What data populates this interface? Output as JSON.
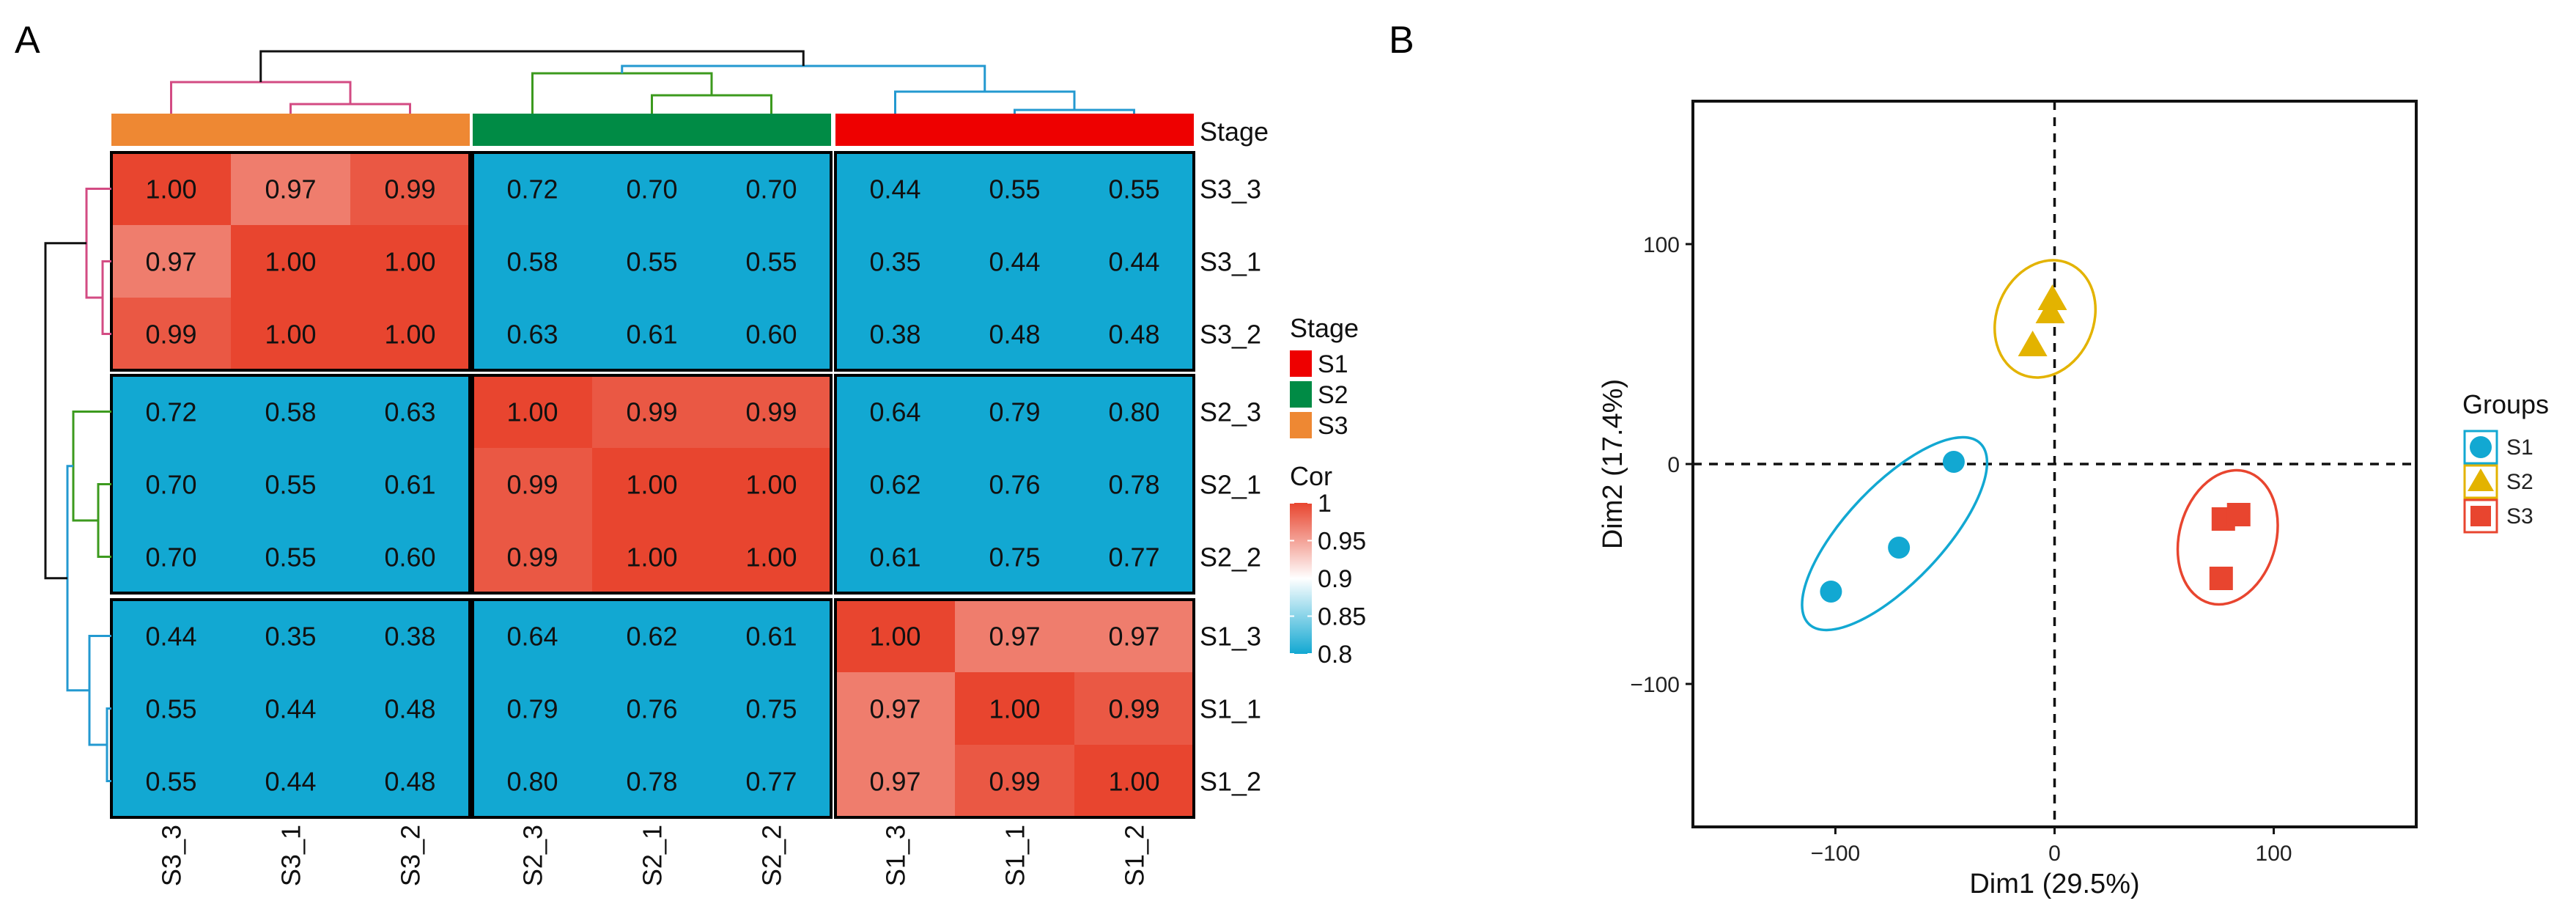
{
  "panel_labels": {
    "a": "A",
    "b": "B"
  },
  "colors": {
    "low": "#12a8d2",
    "mid": "#ffffff",
    "high": "#e8452f",
    "S1": "#ee0000",
    "S2": "#008b45",
    "S3": "#ee8833",
    "tree_S3": "#d34b83",
    "tree_S2": "#3c9a1e",
    "tree_S1": "#2399d0",
    "tree_root": "#111111",
    "pca_S1": "#12a8d2",
    "pca_S2": "#e3b300",
    "pca_S3": "#e8452f"
  },
  "chart_data": [
    {
      "type": "heatmap",
      "title": "",
      "samples": [
        "S3_3",
        "S3_1",
        "S3_2",
        "S2_3",
        "S2_1",
        "S2_2",
        "S1_3",
        "S1_1",
        "S1_2"
      ],
      "row_labels": [
        "S3_3",
        "S3_1",
        "S3_2",
        "S2_3",
        "S2_1",
        "S2_2",
        "S1_3",
        "S1_1",
        "S1_2"
      ],
      "col_labels": [
        "S3_3",
        "S3_1",
        "S3_2",
        "S2_3",
        "S2_1",
        "S2_2",
        "S1_3",
        "S1_1",
        "S1_2"
      ],
      "sample_stage": [
        "S3",
        "S3",
        "S3",
        "S2",
        "S2",
        "S2",
        "S1",
        "S1",
        "S1"
      ],
      "values": [
        [
          1.0,
          0.97,
          0.99,
          0.72,
          0.7,
          0.7,
          0.44,
          0.55,
          0.55
        ],
        [
          0.97,
          1.0,
          1.0,
          0.58,
          0.55,
          0.55,
          0.35,
          0.44,
          0.44
        ],
        [
          0.99,
          1.0,
          1.0,
          0.63,
          0.61,
          0.6,
          0.38,
          0.48,
          0.48
        ],
        [
          0.72,
          0.58,
          0.63,
          1.0,
          0.99,
          0.99,
          0.64,
          0.79,
          0.8
        ],
        [
          0.7,
          0.55,
          0.61,
          0.99,
          1.0,
          1.0,
          0.62,
          0.76,
          0.78
        ],
        [
          0.7,
          0.55,
          0.6,
          0.99,
          1.0,
          1.0,
          0.61,
          0.75,
          0.77
        ],
        [
          0.44,
          0.35,
          0.38,
          0.64,
          0.62,
          0.61,
          1.0,
          0.97,
          0.97
        ],
        [
          0.55,
          0.44,
          0.48,
          0.79,
          0.76,
          0.75,
          0.97,
          1.0,
          0.99
        ],
        [
          0.55,
          0.44,
          0.48,
          0.8,
          0.78,
          0.77,
          0.97,
          0.99,
          1.0
        ]
      ],
      "cell_labels": [
        [
          "1.00",
          "0.97",
          "0.99",
          "0.72",
          "0.70",
          "0.70",
          "0.44",
          "0.55",
          "0.55"
        ],
        [
          "0.97",
          "1.00",
          "1.00",
          "0.58",
          "0.55",
          "0.55",
          "0.35",
          "0.44",
          "0.44"
        ],
        [
          "0.99",
          "1.00",
          "1.00",
          "0.63",
          "0.61",
          "0.60",
          "0.38",
          "0.48",
          "0.48"
        ],
        [
          "0.72",
          "0.58",
          "0.63",
          "1.00",
          "0.99",
          "0.99",
          "0.64",
          "0.79",
          "0.80"
        ],
        [
          "0.70",
          "0.55",
          "0.61",
          "0.99",
          "1.00",
          "1.00",
          "0.62",
          "0.76",
          "0.78"
        ],
        [
          "0.70",
          "0.55",
          "0.60",
          "0.99",
          "1.00",
          "1.00",
          "0.61",
          "0.75",
          "0.77"
        ],
        [
          "0.44",
          "0.35",
          "0.38",
          "0.64",
          "0.62",
          "0.61",
          "1.00",
          "0.97",
          "0.97"
        ],
        [
          "0.55",
          "0.44",
          "0.48",
          "0.79",
          "0.76",
          "0.75",
          "0.97",
          "1.00",
          "0.99"
        ],
        [
          "0.55",
          "0.44",
          "0.48",
          "0.80",
          "0.78",
          "0.77",
          "0.97",
          "0.99",
          "1.00"
        ]
      ],
      "color_range": [
        0.8,
        1.0
      ],
      "color_mid": 0.9,
      "annotation_title": "Stage",
      "stage_legend": {
        "title": "Stage",
        "items": [
          "S1",
          "S2",
          "S3"
        ]
      },
      "color_legend": {
        "title": "Cor",
        "ticks": [
          "1",
          "0.95",
          "0.9",
          "0.85",
          "0.8"
        ],
        "tick_values": [
          1.0,
          0.95,
          0.9,
          0.85,
          0.8
        ]
      },
      "dendrogram": {
        "groups": [
          [
            "S3_3",
            "S3_1",
            "S3_2"
          ],
          [
            "S2_3",
            "S2_1",
            "S2_2"
          ],
          [
            "S1_3",
            "S1_1",
            "S1_2"
          ]
        ],
        "join_order": [
          "S2+S1",
          "S3+(S2,S1)"
        ]
      }
    },
    {
      "type": "scatter",
      "title": "",
      "xlabel": "Dim1 (29.5%)",
      "ylabel": "Dim2 (17.4%)",
      "xlim": [
        -165,
        165
      ],
      "ylim": [
        -165,
        165
      ],
      "xticks": [
        -100,
        0,
        100
      ],
      "yticks": [
        -100,
        0,
        100
      ],
      "xtick_labels": [
        "−100",
        "0",
        "100"
      ],
      "ytick_labels": [
        "−100",
        "0",
        "100"
      ],
      "reference_lines": {
        "x": 0,
        "y": 0,
        "style": "dashed"
      },
      "legend": {
        "title": "Groups",
        "position": "right"
      },
      "series": [
        {
          "name": "S1",
          "marker": "circle",
          "x": [
            -46,
            -71,
            -102
          ],
          "y": [
            1,
            -38,
            -58
          ]
        },
        {
          "name": "S2",
          "marker": "triangle",
          "x": [
            -1,
            -2,
            -10
          ],
          "y": [
            75,
            69,
            54
          ]
        },
        {
          "name": "S3",
          "marker": "square",
          "x": [
            77,
            84,
            76
          ],
          "y": [
            -25,
            -23,
            -52
          ]
        }
      ]
    }
  ]
}
